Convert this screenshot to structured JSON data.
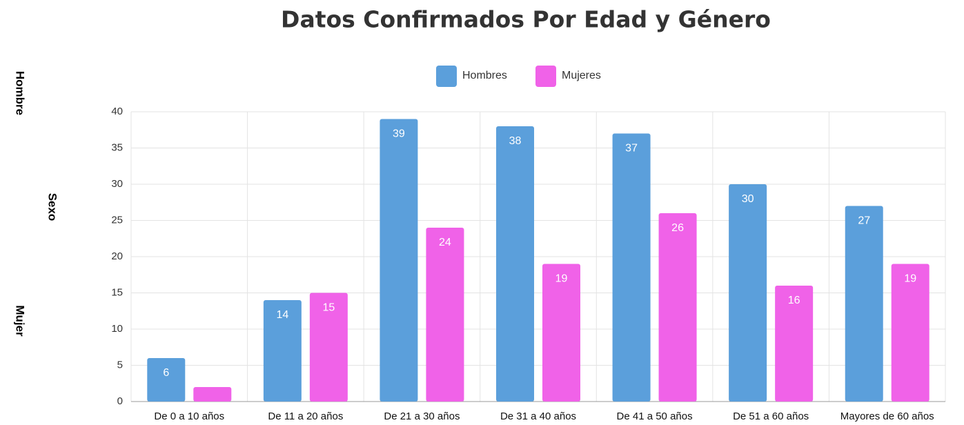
{
  "chart_data": {
    "type": "bar",
    "title": "Datos Confirmados Por Edad y Género",
    "side_labels": [
      "Hombre",
      "Sexo",
      "Mujer"
    ],
    "categories": [
      "De 0 a 10 años",
      "De 11 a 20 años",
      "De 21 a 30 años",
      "De 31 a 40 años",
      "De 41 a 50 años",
      "De 51 a 60 años",
      "Mayores de 60 años"
    ],
    "series": [
      {
        "name": "Hombres",
        "color": "#5b9fdb",
        "values": [
          6,
          14,
          39,
          38,
          37,
          30,
          27
        ]
      },
      {
        "name": "Mujeres",
        "color": "#f062e8",
        "values": [
          2,
          15,
          24,
          19,
          26,
          16,
          19
        ]
      }
    ],
    "ylim": [
      0,
      40
    ],
    "yticks": [
      0,
      5,
      10,
      15,
      20,
      25,
      30,
      35,
      40
    ],
    "grid": true,
    "legend": "top"
  }
}
